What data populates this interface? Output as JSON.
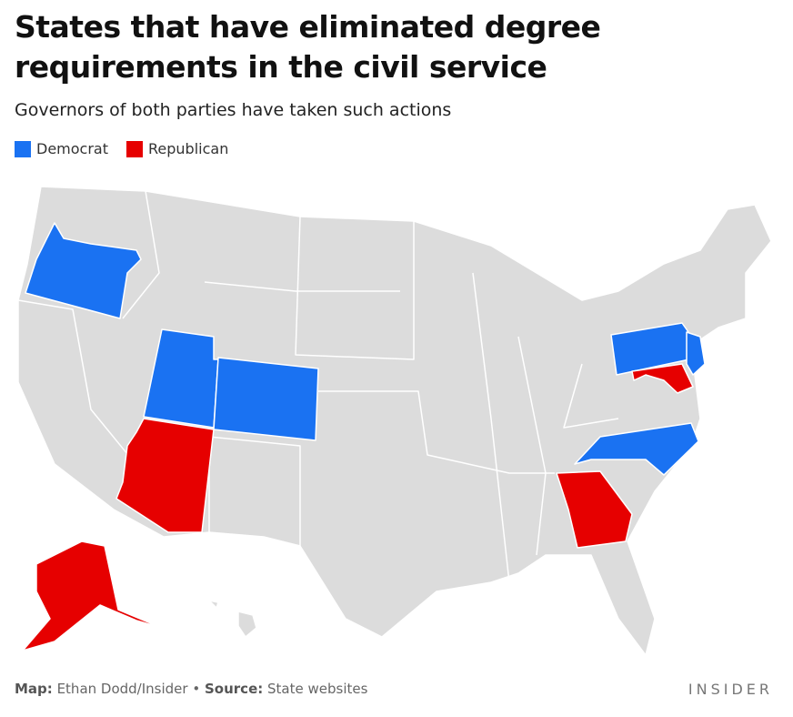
{
  "header": {
    "title": "States that have eliminated degree requirements in the civil service",
    "subtitle": "Governors of both parties have taken such actions"
  },
  "legend": [
    {
      "label": "Democrat",
      "color": "#1a72f2"
    },
    {
      "label": "Republican",
      "color": "#e60000"
    }
  ],
  "footer": {
    "map_label": "Map:",
    "map_credit": "Ethan Dodd/Insider",
    "separator": "•",
    "source_label": "Source:",
    "source": "State websites",
    "brand": "INSIDER"
  }
}
